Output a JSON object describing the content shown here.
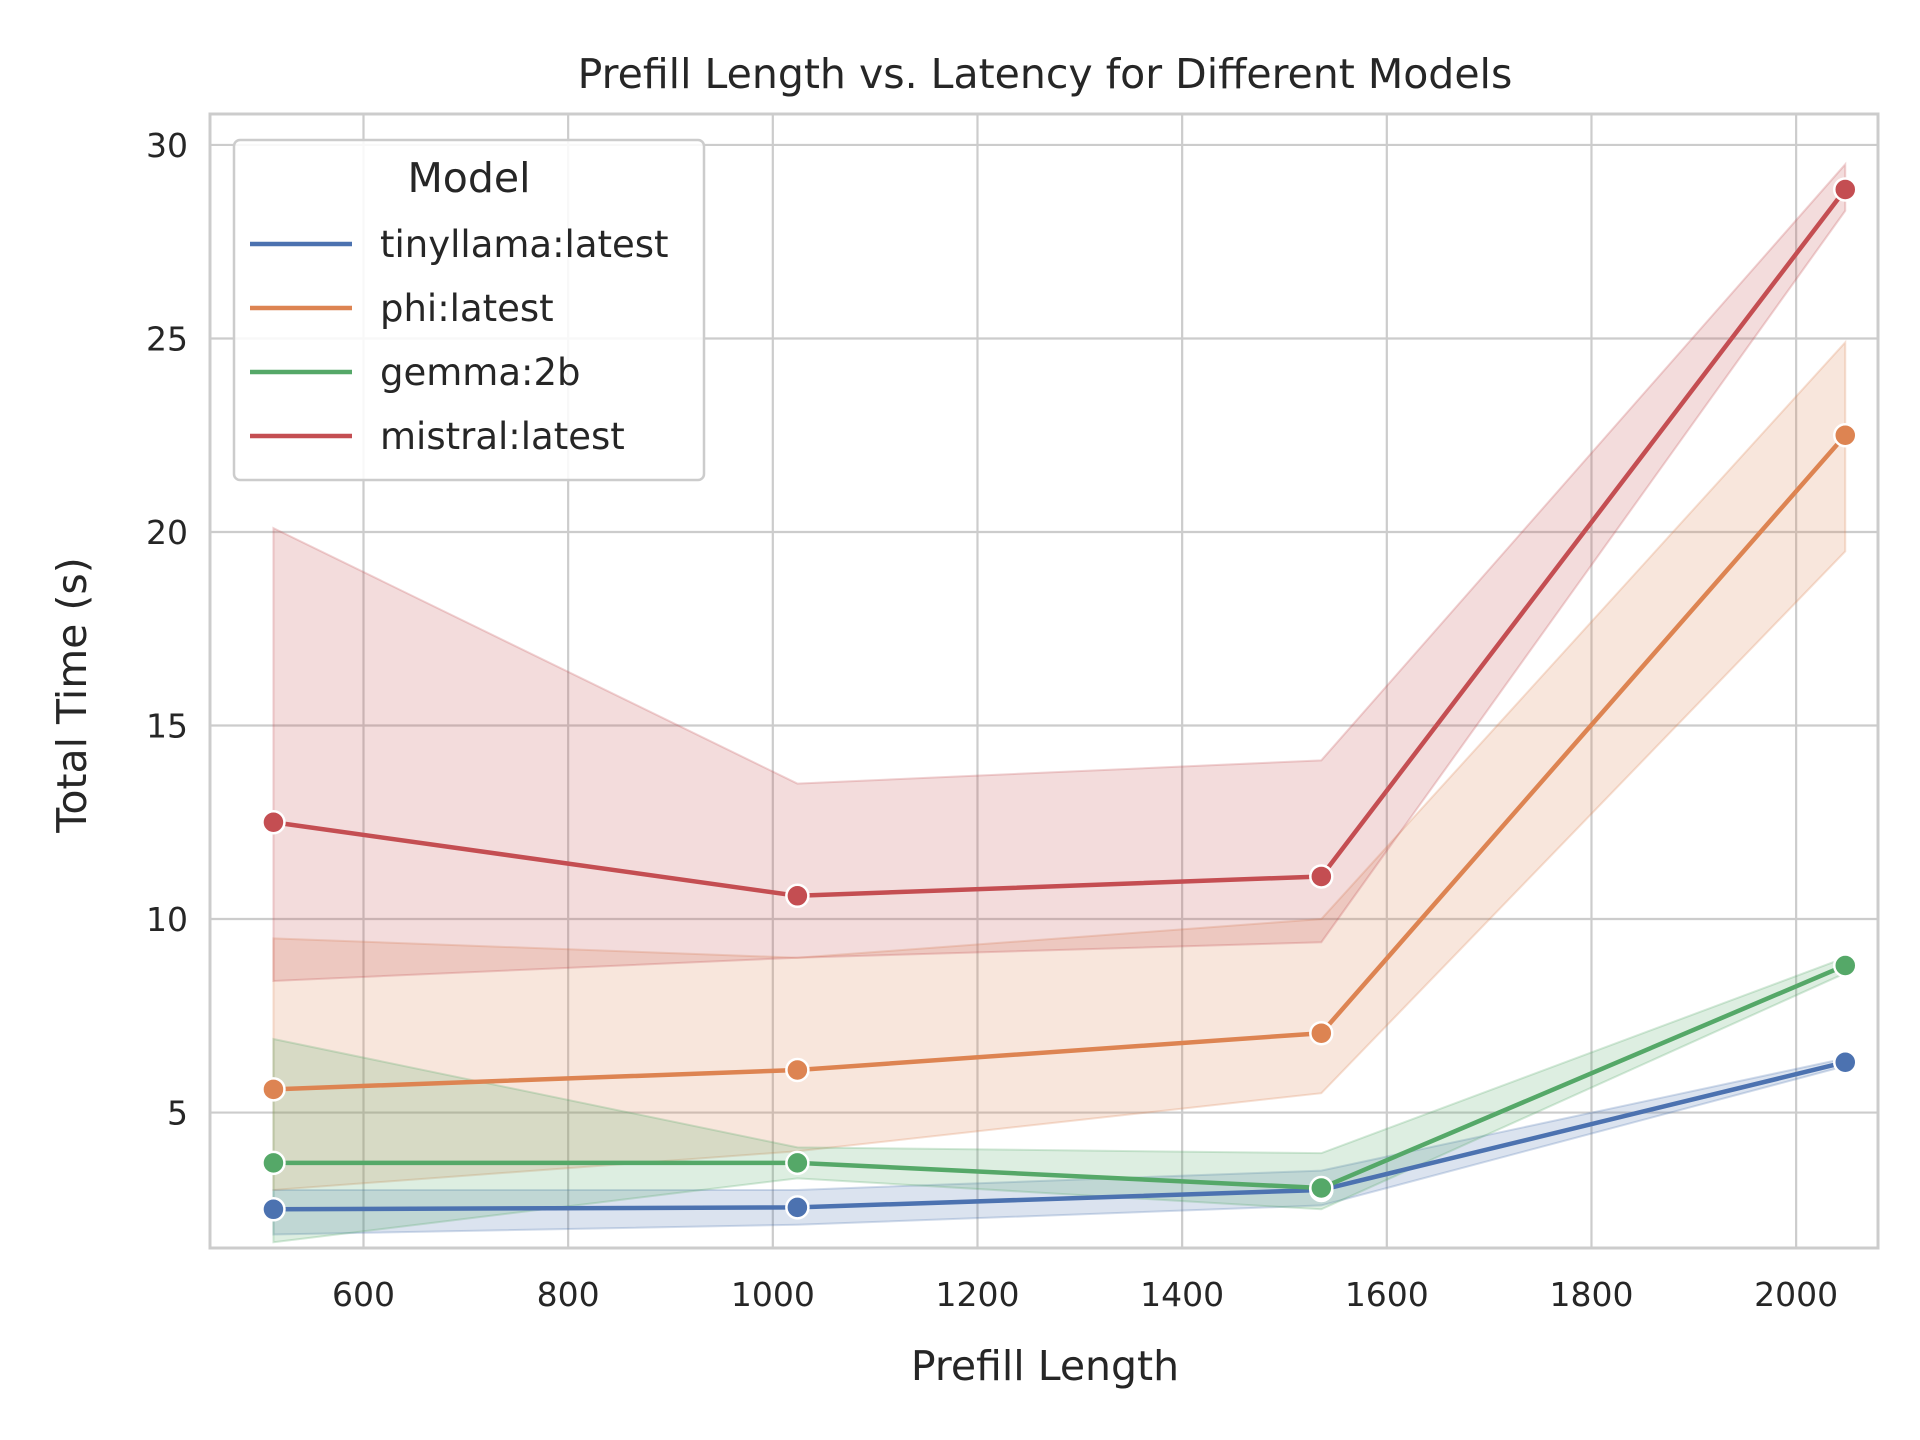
{
  "chart_data": {
    "type": "line",
    "title": "Prefill Length vs. Latency for Different Models",
    "xlabel": "Prefill Length",
    "ylabel": "Total Time (s)",
    "xlim": [
      450,
      2080
    ],
    "ylim": [
      1.5,
      30.8
    ],
    "xticks": [
      600,
      800,
      1000,
      1200,
      1400,
      1600,
      1800,
      2000
    ],
    "yticks": [
      5,
      10,
      15,
      20,
      25,
      30
    ],
    "grid": true,
    "legend": {
      "title": "Model",
      "position": "upper-left"
    },
    "x": [
      512,
      1024,
      1536,
      2048
    ],
    "series": [
      {
        "name": "tinyllama:latest",
        "color": "#4c72b0",
        "values": [
          2.5,
          2.55,
          3.0,
          6.3
        ],
        "ci_low": [
          1.85,
          2.1,
          2.6,
          6.2
        ],
        "ci_high": [
          3.0,
          3.0,
          3.5,
          6.4
        ]
      },
      {
        "name": "phi:latest",
        "color": "#dd8452",
        "values": [
          5.6,
          6.1,
          7.05,
          22.5
        ],
        "ci_low": [
          3.0,
          4.0,
          5.5,
          19.5
        ],
        "ci_high": [
          9.5,
          9.0,
          10.0,
          24.9
        ]
      },
      {
        "name": "gemma:2b",
        "color": "#55a868",
        "values": [
          3.7,
          3.7,
          3.05,
          8.8
        ],
        "ci_low": [
          1.65,
          3.3,
          2.5,
          8.6
        ],
        "ci_high": [
          6.9,
          4.1,
          3.95,
          9.0
        ]
      },
      {
        "name": "mistral:latest",
        "color": "#c44e52",
        "values": [
          12.5,
          10.6,
          11.1,
          28.85
        ],
        "ci_low": [
          8.4,
          9.0,
          9.4,
          28.3
        ],
        "ci_high": [
          20.1,
          13.5,
          14.1,
          29.5
        ]
      }
    ]
  }
}
